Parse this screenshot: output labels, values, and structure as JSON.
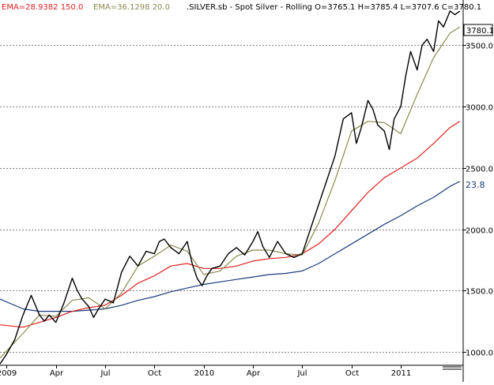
{
  "header": {
    "ema1_text": "EMA=28.9382  150.0",
    "ema1_color": "#e02020",
    "ema2_text": "EMA=36.1298  20.0",
    "ema2_color": "#8a8a50",
    "title": ".SILVER.sb - Spot Silver - Rolling O=3765.1 H=3785.4 L=3707.6 C=3780.1"
  },
  "price_tag": "3780.1",
  "ema_tag": "23.8",
  "chart_data": {
    "type": "line",
    "title": ".SILVER.sb - Spot Silver - Rolling O=3765.1 H=3785.4 L=3707.6 C=3780.1",
    "xlabel": "",
    "ylabel": "",
    "x_ticks": [
      "2009",
      "Apr",
      "Jul",
      "Oct",
      "2010",
      "Apr",
      "Jul",
      "Oct",
      "2011"
    ],
    "x_tick_values": [
      0,
      3,
      6,
      9,
      12,
      15,
      18,
      21,
      24
    ],
    "xlim": [
      -0.4,
      27.8
    ],
    "y_ticks": [
      "1000.0",
      "1500.0",
      "2000.0",
      "2500.0",
      "3000.0",
      "3500.0"
    ],
    "y_tick_values": [
      1000,
      1500,
      2000,
      2500,
      3000,
      3500
    ],
    "ylim": [
      890,
      3870
    ],
    "grid": "horizontal-dashed",
    "ohlc": {
      "open": 3765.1,
      "high": 3785.4,
      "low": 3707.6,
      "close": 3780.1
    },
    "series": [
      {
        "color": "#000000",
        "x": [
          -0.4,
          0,
          0.5,
          1,
          1.5,
          2,
          2.3,
          2.6,
          3,
          3.5,
          4,
          4.3,
          4.6,
          5,
          5.3,
          5.6,
          6,
          6.5,
          7,
          7.5,
          8,
          8.5,
          9,
          9.3,
          9.6,
          10,
          10.5,
          11,
          11.3,
          11.6,
          11.9,
          12.2,
          12.5,
          13,
          13.5,
          14,
          14.5,
          15,
          15.3,
          15.6,
          16,
          16.5,
          17,
          17.5,
          18,
          18.5,
          19,
          19.5,
          20,
          20.5,
          21,
          21.3,
          21.6,
          22,
          22.3,
          22.6,
          23,
          23.3,
          23.6,
          24,
          24.3,
          24.6,
          25,
          25.3,
          25.6,
          26,
          26.3,
          26.6,
          27,
          27.3,
          27.6
        ],
        "values": [
          900,
          980,
          1100,
          1300,
          1460,
          1300,
          1250,
          1300,
          1240,
          1400,
          1600,
          1500,
          1430,
          1370,
          1280,
          1350,
          1430,
          1400,
          1650,
          1780,
          1700,
          1820,
          1800,
          1900,
          1920,
          1850,
          1800,
          1900,
          1720,
          1600,
          1540,
          1620,
          1680,
          1700,
          1800,
          1850,
          1790,
          1900,
          1980,
          1860,
          1770,
          1900,
          1800,
          1770,
          1800,
          2000,
          2200,
          2400,
          2600,
          2900,
          2950,
          2700,
          2830,
          3050,
          2980,
          2850,
          2800,
          2650,
          2900,
          3000,
          3250,
          3450,
          3300,
          3500,
          3550,
          3450,
          3700,
          3650,
          3780,
          3750,
          3780
        ]
      },
      {
        "name": "EMA=36.1298  20.0",
        "color": "#8a8a50",
        "x": [
          -0.4,
          1,
          2,
          3,
          4,
          5,
          6,
          7,
          8,
          9,
          10,
          11,
          12,
          13,
          14,
          15,
          16,
          17,
          18,
          19,
          20,
          21,
          22,
          23,
          24,
          25,
          26,
          27,
          27.6
        ],
        "values": [
          950,
          1150,
          1300,
          1290,
          1420,
          1440,
          1350,
          1480,
          1700,
          1780,
          1870,
          1820,
          1630,
          1660,
          1780,
          1830,
          1830,
          1800,
          1790,
          2050,
          2400,
          2800,
          2880,
          2870,
          2780,
          3100,
          3400,
          3600,
          3650
        ]
      },
      {
        "name": "EMA=28.9382  150.0",
        "color": "#e02020",
        "x": [
          -0.4,
          1,
          2,
          3,
          4,
          5,
          6,
          7,
          8,
          9,
          10,
          11,
          12,
          13,
          14,
          15,
          16,
          17,
          18,
          19,
          20,
          21,
          22,
          23,
          24,
          25,
          26,
          27,
          27.6
        ],
        "values": [
          1220,
          1200,
          1240,
          1280,
          1330,
          1360,
          1380,
          1460,
          1560,
          1620,
          1700,
          1720,
          1680,
          1680,
          1700,
          1740,
          1760,
          1770,
          1800,
          1880,
          2000,
          2150,
          2300,
          2420,
          2500,
          2580,
          2700,
          2830,
          2880
        ]
      },
      {
        "color": "#1a3a7a",
        "x": [
          -0.4,
          1,
          2,
          3,
          4,
          5,
          6,
          7,
          8,
          9,
          10,
          11,
          12,
          13,
          14,
          15,
          16,
          17,
          18,
          19,
          20,
          21,
          22,
          23,
          24,
          25,
          26,
          27,
          27.6
        ],
        "values": [
          1430,
          1350,
          1330,
          1330,
          1330,
          1340,
          1350,
          1380,
          1420,
          1450,
          1490,
          1520,
          1550,
          1570,
          1590,
          1610,
          1630,
          1640,
          1660,
          1720,
          1800,
          1880,
          1960,
          2040,
          2110,
          2190,
          2260,
          2350,
          2390
        ]
      }
    ]
  }
}
